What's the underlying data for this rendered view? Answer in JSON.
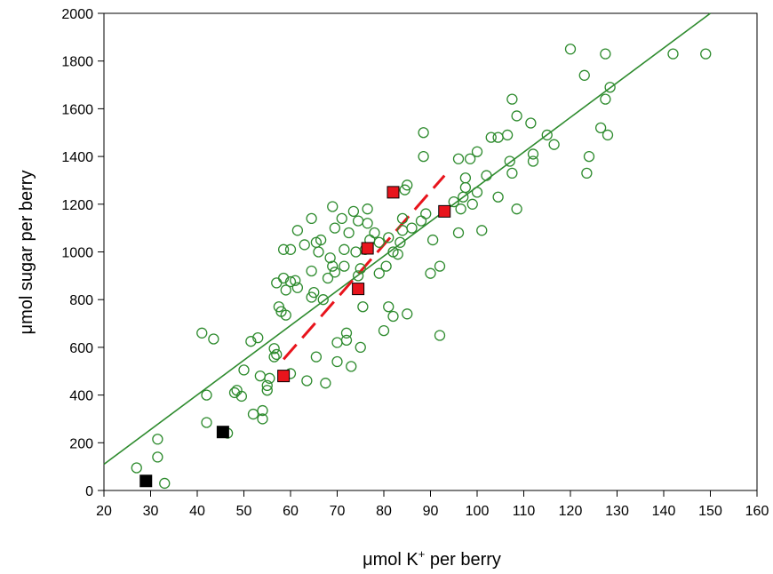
{
  "chart_data": {
    "type": "scatter",
    "title": "",
    "xlabel": {
      "prefix": "μmol K",
      "sup": "+",
      "suffix": " per berry"
    },
    "ylabel": "μmol sugar per berry",
    "xlim": [
      20,
      160
    ],
    "ylim": [
      0,
      2000
    ],
    "xticks": [
      20,
      30,
      40,
      50,
      60,
      70,
      80,
      90,
      100,
      110,
      120,
      130,
      140,
      150,
      160
    ],
    "yticks": [
      0,
      200,
      400,
      600,
      800,
      1000,
      1200,
      1400,
      1600,
      1800,
      2000
    ],
    "grid": false,
    "legend": "none",
    "colors": {
      "open_circles": "#2e8b2e",
      "fit_line": "#2e8b2e",
      "red_squares": "#e8141c",
      "black_squares": "#000000",
      "dashed_line": "#e8141c"
    },
    "series": [
      {
        "marker": "open-circle",
        "points": [
          [
            27,
            95
          ],
          [
            29,
            40
          ],
          [
            31.5,
            140
          ],
          [
            31.5,
            215
          ],
          [
            33,
            30
          ],
          [
            41,
            660
          ],
          [
            42,
            400
          ],
          [
            42,
            285
          ],
          [
            43.5,
            635
          ],
          [
            46.5,
            240
          ],
          [
            48,
            410
          ],
          [
            48.5,
            420
          ],
          [
            49.5,
            395
          ],
          [
            50,
            505
          ],
          [
            51.5,
            625
          ],
          [
            52,
            320
          ],
          [
            53,
            640
          ],
          [
            53.5,
            480
          ],
          [
            54,
            300
          ],
          [
            54,
            335
          ],
          [
            55,
            440
          ],
          [
            55.5,
            470
          ],
          [
            55,
            420
          ],
          [
            56.5,
            560
          ],
          [
            56.5,
            595
          ],
          [
            57,
            570
          ],
          [
            57.5,
            770
          ],
          [
            57,
            870
          ],
          [
            58,
            750
          ],
          [
            58.5,
            1010
          ],
          [
            58.5,
            890
          ],
          [
            59,
            735
          ],
          [
            59,
            840
          ],
          [
            60,
            875
          ],
          [
            60,
            1010
          ],
          [
            60,
            490
          ],
          [
            61,
            880
          ],
          [
            61.5,
            1090
          ],
          [
            61.5,
            850
          ],
          [
            63,
            1030
          ],
          [
            63.5,
            460
          ],
          [
            64.5,
            810
          ],
          [
            64.5,
            1140
          ],
          [
            64.5,
            920
          ],
          [
            65,
            830
          ],
          [
            65.5,
            560
          ],
          [
            65.5,
            1040
          ],
          [
            66,
            1000
          ],
          [
            66.5,
            1050
          ],
          [
            67,
            800
          ],
          [
            67.5,
            450
          ],
          [
            68,
            890
          ],
          [
            68.5,
            975
          ],
          [
            69,
            1190
          ],
          [
            69,
            940
          ],
          [
            69.5,
            915
          ],
          [
            69.5,
            1100
          ],
          [
            70,
            620
          ],
          [
            70,
            540
          ],
          [
            71,
            1140
          ],
          [
            71.5,
            1010
          ],
          [
            71.5,
            940
          ],
          [
            72,
            660
          ],
          [
            72,
            630
          ],
          [
            72.5,
            1080
          ],
          [
            73,
            520
          ],
          [
            73.5,
            1170
          ],
          [
            74,
            1000
          ],
          [
            74.5,
            1130
          ],
          [
            74.5,
            900
          ],
          [
            75,
            600
          ],
          [
            75,
            930
          ],
          [
            75.5,
            770
          ],
          [
            76,
            1010
          ],
          [
            76.5,
            1180
          ],
          [
            76.5,
            1120
          ],
          [
            77,
            1050
          ],
          [
            78,
            1080
          ],
          [
            79,
            910
          ],
          [
            79,
            1040
          ],
          [
            80,
            670
          ],
          [
            80.5,
            940
          ],
          [
            81,
            1060
          ],
          [
            81,
            770
          ],
          [
            82,
            1000
          ],
          [
            82,
            730
          ],
          [
            83,
            990
          ],
          [
            83.5,
            1040
          ],
          [
            84,
            1090
          ],
          [
            84,
            1140
          ],
          [
            84.5,
            1260
          ],
          [
            85,
            1280
          ],
          [
            85,
            740
          ],
          [
            86,
            1100
          ],
          [
            88,
            1130
          ],
          [
            88.5,
            1400
          ],
          [
            88.5,
            1500
          ],
          [
            89,
            1160
          ],
          [
            90,
            910
          ],
          [
            90.5,
            1050
          ],
          [
            92,
            940
          ],
          [
            92,
            650
          ],
          [
            95,
            1210
          ],
          [
            96,
            1080
          ],
          [
            96,
            1390
          ],
          [
            96.5,
            1180
          ],
          [
            97,
            1230
          ],
          [
            97.5,
            1310
          ],
          [
            97.5,
            1270
          ],
          [
            98.5,
            1390
          ],
          [
            99,
            1200
          ],
          [
            100,
            1250
          ],
          [
            100,
            1420
          ],
          [
            101,
            1090
          ],
          [
            102,
            1320
          ],
          [
            103,
            1480
          ],
          [
            104.5,
            1230
          ],
          [
            104.5,
            1480
          ],
          [
            106.5,
            1490
          ],
          [
            107,
            1380
          ],
          [
            107.5,
            1330
          ],
          [
            107.5,
            1640
          ],
          [
            108.5,
            1180
          ],
          [
            108.5,
            1570
          ],
          [
            111.5,
            1540
          ],
          [
            112,
            1410
          ],
          [
            112,
            1380
          ],
          [
            115,
            1490
          ],
          [
            116.5,
            1450
          ],
          [
            120,
            1850
          ],
          [
            123,
            1740
          ],
          [
            123.5,
            1330
          ],
          [
            124,
            1400
          ],
          [
            126.5,
            1520
          ],
          [
            127.5,
            1640
          ],
          [
            127.5,
            1830
          ],
          [
            128,
            1490
          ],
          [
            128.5,
            1690
          ],
          [
            142,
            1830
          ],
          [
            149,
            1830
          ]
        ]
      },
      {
        "marker": "red-square",
        "points": [
          [
            58.5,
            480
          ],
          [
            74.5,
            845
          ],
          [
            76.5,
            1015
          ],
          [
            82,
            1250
          ],
          [
            93,
            1170
          ]
        ]
      },
      {
        "marker": "black-square",
        "points": [
          [
            29,
            40
          ],
          [
            45.5,
            245
          ]
        ]
      }
    ],
    "fit_line": {
      "style": "solid",
      "from": [
        20,
        110
      ],
      "to": [
        150,
        2000
      ]
    },
    "dashed_segment": {
      "style": "dashed",
      "from": [
        58.5,
        550
      ],
      "to": [
        93,
        1320
      ]
    }
  }
}
